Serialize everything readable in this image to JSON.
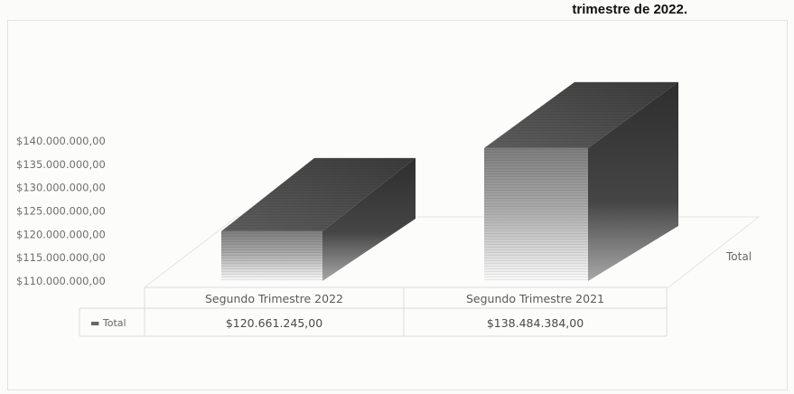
{
  "caption": "trimestre de 2022.",
  "chart_data": {
    "type": "bar",
    "categories": [
      "Segundo Trimestre 2022",
      "Segundo Trimestre 2021"
    ],
    "series": [
      {
        "name": "Total",
        "values": [
          120661245.0,
          138484384.0
        ]
      }
    ],
    "value_labels": [
      "$120.661.245,00",
      "$138.484.384,00"
    ],
    "y_ticks": [
      {
        "value": 110000000,
        "label": "$110.000.000,00"
      },
      {
        "value": 115000000,
        "label": "$115.000.000,00"
      },
      {
        "value": 120000000,
        "label": "$120.000.000,00"
      },
      {
        "value": 125000000,
        "label": "$125.000.000,00"
      },
      {
        "value": 130000000,
        "label": "$130.000.000,00"
      },
      {
        "value": 135000000,
        "label": "$135.000.000,00"
      },
      {
        "value": 140000000,
        "label": "$140.000.000,00"
      }
    ],
    "ylim": [
      110000000,
      140000000
    ],
    "depth_label": "Total",
    "legend_marker": "▬",
    "legend_label": "Total",
    "data_table": true,
    "style": "3d-column"
  }
}
